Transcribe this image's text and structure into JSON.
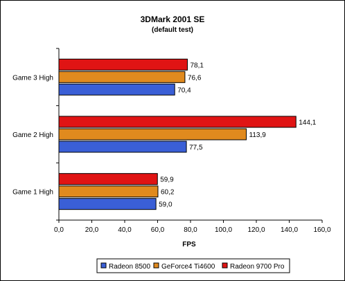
{
  "chart_data": {
    "type": "bar",
    "orientation": "horizontal",
    "title": "3DMark 2001 SE",
    "subtitle": "(default test)",
    "xlabel": "FPS",
    "ylabel": "",
    "xlim": [
      0,
      160
    ],
    "x_ticks": [
      "0,0",
      "20,0",
      "40,0",
      "60,0",
      "80,0",
      "100,0",
      "120,0",
      "140,0",
      "160,0"
    ],
    "categories": [
      "Game 1 High",
      "Game 2 High",
      "Game 3 High"
    ],
    "series": [
      {
        "name": "Radeon 8500",
        "color": "#3a5fd6",
        "values": [
          59.0,
          77.5,
          70.4
        ],
        "labels": [
          "59,0",
          "77,5",
          "70,4"
        ]
      },
      {
        "name": "GeForce4 Ti4600",
        "color": "#e08a1e",
        "values": [
          60.2,
          113.9,
          76.6
        ],
        "labels": [
          "60,2",
          "113,9",
          "76,6"
        ]
      },
      {
        "name": "Radeon 9700 Pro",
        "color": "#e01414",
        "values": [
          59.9,
          144.1,
          78.1
        ],
        "labels": [
          "59,9",
          "144,1",
          "78,1"
        ]
      }
    ],
    "grid": false,
    "legend_position": "bottom"
  }
}
